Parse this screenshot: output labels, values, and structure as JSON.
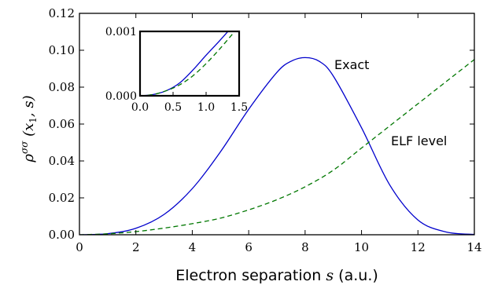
{
  "chart_data": [
    {
      "type": "line",
      "xlabel": "Electron separation s (a.u.)",
      "ylabel": "ρσσ (x1, s)",
      "xlim": [
        0,
        14
      ],
      "ylim": [
        0,
        0.12
      ],
      "xticks": [
        "0",
        "2",
        "4",
        "6",
        "8",
        "10",
        "12",
        "14"
      ],
      "yticks": [
        "0.00",
        "0.02",
        "0.04",
        "0.06",
        "0.08",
        "0.10",
        "0.12"
      ],
      "grid": false,
      "series": [
        {
          "name": "Exact",
          "color": "#0000cc",
          "style": "solid",
          "x": [
            0,
            1,
            2,
            3,
            4,
            5,
            6,
            7,
            7.5,
            8,
            8.5,
            9,
            10,
            11,
            12,
            13,
            14
          ],
          "y": [
            0,
            0.0006,
            0.0035,
            0.011,
            0.025,
            0.045,
            0.068,
            0.088,
            0.094,
            0.096,
            0.094,
            0.086,
            0.058,
            0.027,
            0.008,
            0.0015,
            0.0002
          ]
        },
        {
          "name": "ELF level",
          "color": "#007700",
          "style": "dashed",
          "x": [
            0,
            1,
            2,
            3,
            4,
            5,
            6,
            7,
            8,
            9,
            10,
            11,
            12,
            13,
            14
          ],
          "y": [
            0,
            0.0005,
            0.0017,
            0.0036,
            0.006,
            0.009,
            0.0135,
            0.019,
            0.026,
            0.035,
            0.047,
            0.059,
            0.071,
            0.083,
            0.095
          ]
        }
      ],
      "annotations": [
        "Exact",
        "ELF level"
      ]
    },
    {
      "type": "line",
      "role": "inset",
      "xlim": [
        0,
        1.5
      ],
      "ylim": [
        0,
        0.001
      ],
      "xticks": [
        "0.0",
        "0.5",
        "1.0",
        "1.5"
      ],
      "yticks": [
        "0.000",
        "0.001"
      ],
      "series": [
        {
          "name": "Exact",
          "color": "#0000cc",
          "style": "solid",
          "x": [
            0,
            0.2,
            0.4,
            0.6,
            0.8,
            1.0,
            1.2,
            1.4
          ],
          "y": [
            0,
            2e-05,
            8e-05,
            0.0002,
            0.0004,
            0.00063,
            0.00085,
            0.00108
          ]
        },
        {
          "name": "ELF level",
          "color": "#007700",
          "style": "dashed",
          "x": [
            0,
            0.2,
            0.4,
            0.6,
            0.8,
            1.0,
            1.2,
            1.4
          ],
          "y": [
            0,
            2e-05,
            8e-05,
            0.00017,
            0.00031,
            0.0005,
            0.00072,
            0.00096
          ]
        }
      ]
    }
  ],
  "labels": {
    "xlabel_pre": "Electron separation ",
    "xlabel_var": "s",
    "xlabel_post": " (a.u.)",
    "ylabel_rho": "ρ",
    "ylabel_sup": "σσ",
    "ylabel_args": " (x",
    "ylabel_sub": "1",
    "ylabel_end": ", s)",
    "ann_exact": "Exact",
    "ann_elf": "ELF level"
  }
}
